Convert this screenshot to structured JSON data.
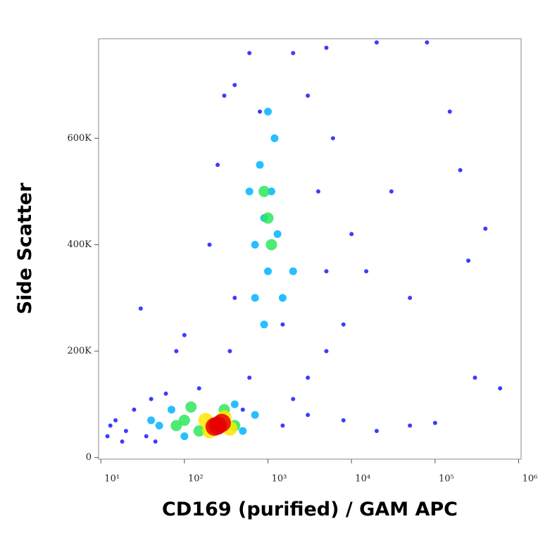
{
  "chart_data": {
    "type": "scatter",
    "x_label": "CD169 (purified) / GAM APC",
    "y_label": "Side Scatter",
    "xscale": "log",
    "xlim": [
      9.4,
      1070000
    ],
    "ylim": [
      -3000,
      787000
    ],
    "xticks": [
      {
        "value": 10,
        "label": "10¹"
      },
      {
        "value": 100,
        "label": "10²"
      },
      {
        "value": 1000,
        "label": "10³"
      },
      {
        "value": 10000,
        "label": "10⁴"
      },
      {
        "value": 100000,
        "label": "10⁵"
      },
      {
        "value": 1000000,
        "label": "10⁶"
      }
    ],
    "yticks": [
      0,
      {
        "value": 200000,
        "label": "200K"
      },
      {
        "value": 400000,
        "label": "400K"
      },
      {
        "value": 600000,
        "label": "600K"
      }
    ],
    "density_levels": [
      {
        "color": "#1a1aff",
        "x": [
          15,
          20,
          25,
          12,
          40,
          60,
          150,
          500,
          1500,
          3000,
          8000,
          20000,
          50000,
          100000,
          300000,
          600000,
          400000,
          250000,
          200000,
          150000,
          30000,
          50000,
          15000,
          8000,
          5000,
          3000,
          2000,
          10000,
          6000,
          400,
          300,
          600,
          2000,
          5000,
          20000,
          80000,
          400,
          350,
          600,
          800,
          3000,
          4000,
          5000,
          1500,
          30,
          80,
          200,
          250,
          100,
          13,
          18,
          35,
          45
        ],
        "y": [
          70000,
          50000,
          90000,
          40000,
          110000,
          120000,
          130000,
          90000,
          60000,
          80000,
          70000,
          50000,
          60000,
          65000,
          150000,
          130000,
          430000,
          370000,
          540000,
          650000,
          500000,
          300000,
          350000,
          250000,
          200000,
          150000,
          110000,
          420000,
          600000,
          700000,
          680000,
          760000,
          760000,
          770000,
          780000,
          780000,
          300000,
          200000,
          150000,
          650000,
          680000,
          500000,
          350000,
          250000,
          280000,
          200000,
          400000,
          550000,
          230000,
          60000,
          30000,
          40000,
          30000
        ]
      },
      {
        "color": "#00b4ff",
        "x": [
          700,
          900,
          1100,
          1000,
          1300,
          800,
          1200,
          700,
          1500,
          2000,
          900,
          600,
          1000,
          50,
          70,
          100,
          500,
          700,
          400,
          40
        ],
        "y": [
          400000,
          450000,
          500000,
          350000,
          420000,
          550000,
          600000,
          300000,
          300000,
          350000,
          250000,
          500000,
          650000,
          60000,
          90000,
          40000,
          50000,
          80000,
          100000,
          70000
        ]
      },
      {
        "color": "#2ee85a",
        "x": [
          1000,
          1100,
          900,
          100,
          150,
          400,
          300,
          120,
          80
        ],
        "y": [
          450000,
          400000,
          500000,
          70000,
          50000,
          60000,
          90000,
          95000,
          60000
        ]
      },
      {
        "color": "#ffe600",
        "x": [
          180,
          350,
          200,
          300
        ],
        "y": [
          70000,
          55000,
          50000,
          75000
        ]
      },
      {
        "color": "#e60000",
        "x": [
          250,
          280,
          230
        ],
        "y": [
          60000,
          65000,
          58000
        ]
      }
    ]
  }
}
